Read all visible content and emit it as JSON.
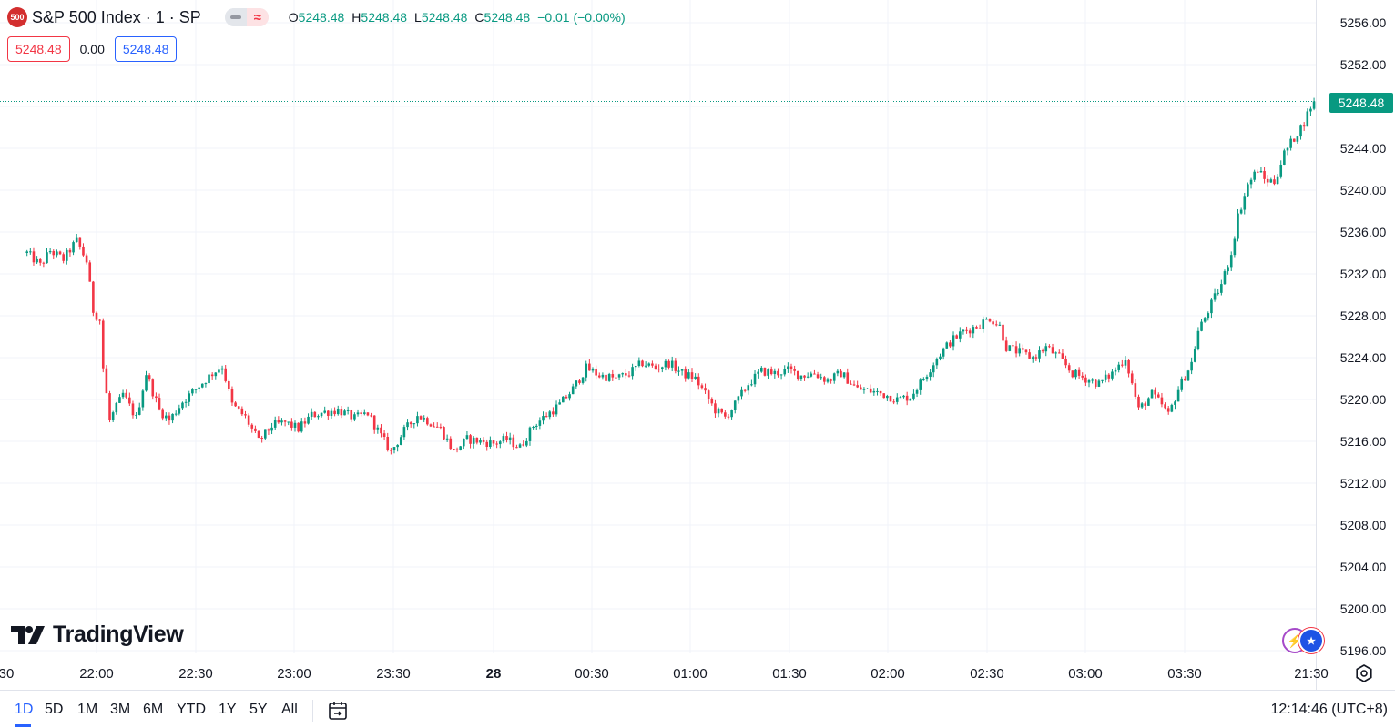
{
  "legend": {
    "badge": "500",
    "symbol_title": "S&P 500 Index · 1 · SP",
    "compare_icon": "≈",
    "ohlc": [
      {
        "k": "O",
        "v": "5248.48"
      },
      {
        "k": "H",
        "v": "5248.48"
      },
      {
        "k": "L",
        "v": "5248.48"
      },
      {
        "k": "C",
        "v": "5248.48"
      },
      {
        "k": "",
        "v": "−0.01 (−0.00%)"
      }
    ]
  },
  "order_boxes": {
    "sell": "5248.48",
    "spread": "0.00",
    "buy": "5248.48"
  },
  "brand": {
    "name": "TradingView"
  },
  "price_scale": {
    "labels": [
      "5256.00",
      "5252.00",
      "5248.00",
      "5244.00",
      "5240.00",
      "5236.00",
      "5232.00",
      "5228.00",
      "5224.00",
      "5220.00",
      "5216.00",
      "5212.00",
      "5208.00",
      "5204.00",
      "5200.00",
      "5196.00"
    ],
    "last_price": "5248.48"
  },
  "time_axis": {
    "labels": [
      "30",
      "22:00",
      "22:30",
      "23:00",
      "23:30",
      "28",
      "00:30",
      "01:00",
      "01:30",
      "02:00",
      "02:30",
      "03:00",
      "03:30",
      "21:30"
    ]
  },
  "toolbar": {
    "ranges": [
      "1D",
      "5D",
      "1M",
      "3M",
      "6M",
      "YTD",
      "1Y",
      "5Y",
      "All"
    ],
    "active_range": "1D",
    "clock": "12:14:46 (UTC+8)"
  },
  "colors": {
    "up": "#089981",
    "down": "#f23645",
    "accent": "#2962ff",
    "grid": "#f0f3fa"
  },
  "chart_data": {
    "type": "candlestick",
    "title": "S&P 500 Index · 1 · SP",
    "interval": "1 minute",
    "xlabel": "",
    "ylabel": "",
    "ylim": [
      5195.5,
      5257.5
    ],
    "y_ticks": [
      5256,
      5252,
      5248,
      5244,
      5240,
      5236,
      5232,
      5228,
      5224,
      5220,
      5216,
      5212,
      5208,
      5204,
      5200,
      5196
    ],
    "x_ticks": [
      "30",
      "22:00",
      "22:30",
      "23:00",
      "23:30",
      "28",
      "00:30",
      "01:00",
      "01:30",
      "02:00",
      "02:30",
      "03:00",
      "03:30",
      "21:30"
    ],
    "last_price": 5248.48,
    "grid": true,
    "price_path": [
      {
        "time": "21:39",
        "price": 5234.0
      },
      {
        "time": "21:43",
        "price": 5232.8
      },
      {
        "time": "21:46",
        "price": 5234.2
      },
      {
        "time": "21:50",
        "price": 5233.4
      },
      {
        "time": "21:54",
        "price": 5235.2
      },
      {
        "time": "21:57",
        "price": 5233.2
      },
      {
        "time": "21:59",
        "price": 5228.5
      },
      {
        "time": "22:01",
        "price": 5227.6
      },
      {
        "time": "22:02",
        "price": 5223.0
      },
      {
        "time": "22:04",
        "price": 5218.0
      },
      {
        "time": "22:08",
        "price": 5220.5
      },
      {
        "time": "22:12",
        "price": 5218.2
      },
      {
        "time": "22:15",
        "price": 5222.5
      },
      {
        "time": "22:19",
        "price": 5219.0
      },
      {
        "time": "22:22",
        "price": 5218.0
      },
      {
        "time": "22:26",
        "price": 5219.8
      },
      {
        "time": "22:30",
        "price": 5221.0
      },
      {
        "time": "22:35",
        "price": 5222.5
      },
      {
        "time": "22:38",
        "price": 5223.2
      },
      {
        "time": "22:41",
        "price": 5219.5
      },
      {
        "time": "22:45",
        "price": 5218.3
      },
      {
        "time": "22:49",
        "price": 5216.0
      },
      {
        "time": "22:53",
        "price": 5217.5
      },
      {
        "time": "22:57",
        "price": 5217.8
      },
      {
        "time": "23:01",
        "price": 5217.2
      },
      {
        "time": "23:05",
        "price": 5218.5
      },
      {
        "time": "23:09",
        "price": 5218.8
      },
      {
        "time": "23:13",
        "price": 5219.0
      },
      {
        "time": "23:18",
        "price": 5218.2
      },
      {
        "time": "23:22",
        "price": 5218.7
      },
      {
        "time": "23:26",
        "price": 5216.5
      },
      {
        "time": "23:29",
        "price": 5215.0
      },
      {
        "time": "23:33",
        "price": 5217.0
      },
      {
        "time": "23:37",
        "price": 5218.5
      },
      {
        "time": "23:40",
        "price": 5218.0
      },
      {
        "time": "23:44",
        "price": 5217.2
      },
      {
        "time": "23:48",
        "price": 5215.0
      },
      {
        "time": "23:52",
        "price": 5216.2
      },
      {
        "time": "23:56",
        "price": 5216.0
      },
      {
        "time": "00:00",
        "price": 5215.8
      },
      {
        "time": "00:04",
        "price": 5216.2
      },
      {
        "time": "00:08",
        "price": 5215.4
      },
      {
        "time": "00:12",
        "price": 5217.5
      },
      {
        "time": "00:16",
        "price": 5218.5
      },
      {
        "time": "00:20",
        "price": 5219.5
      },
      {
        "time": "00:24",
        "price": 5221.0
      },
      {
        "time": "00:28",
        "price": 5223.0
      },
      {
        "time": "00:32",
        "price": 5222.3
      },
      {
        "time": "00:37",
        "price": 5222.0
      },
      {
        "time": "00:41",
        "price": 5222.5
      },
      {
        "time": "00:45",
        "price": 5223.5
      },
      {
        "time": "00:49",
        "price": 5223.0
      },
      {
        "time": "00:53",
        "price": 5223.5
      },
      {
        "time": "00:57",
        "price": 5222.5
      },
      {
        "time": "01:01",
        "price": 5222.0
      },
      {
        "time": "01:04",
        "price": 5220.5
      },
      {
        "time": "01:07",
        "price": 5219.0
      },
      {
        "time": "01:10",
        "price": 5218.3
      },
      {
        "time": "01:13",
        "price": 5219.5
      },
      {
        "time": "01:17",
        "price": 5221.5
      },
      {
        "time": "01:21",
        "price": 5222.7
      },
      {
        "time": "01:25",
        "price": 5222.5
      },
      {
        "time": "01:29",
        "price": 5222.8
      },
      {
        "time": "01:33",
        "price": 5222.3
      },
      {
        "time": "01:37",
        "price": 5222.5
      },
      {
        "time": "01:41",
        "price": 5221.8
      },
      {
        "time": "01:45",
        "price": 5222.5
      },
      {
        "time": "01:50",
        "price": 5221.0
      },
      {
        "time": "01:54",
        "price": 5220.8
      },
      {
        "time": "01:58",
        "price": 5220.5
      },
      {
        "time": "02:02",
        "price": 5220.0
      },
      {
        "time": "02:06",
        "price": 5220.3
      },
      {
        "time": "02:10",
        "price": 5222.0
      },
      {
        "time": "02:14",
        "price": 5224.0
      },
      {
        "time": "02:18",
        "price": 5225.5
      },
      {
        "time": "02:22",
        "price": 5226.5
      },
      {
        "time": "02:26",
        "price": 5227.0
      },
      {
        "time": "02:30",
        "price": 5227.8
      },
      {
        "time": "02:33",
        "price": 5227.0
      },
      {
        "time": "02:35",
        "price": 5225.0
      },
      {
        "time": "02:39",
        "price": 5224.5
      },
      {
        "time": "02:43",
        "price": 5224.0
      },
      {
        "time": "02:47",
        "price": 5225.0
      },
      {
        "time": "02:51",
        "price": 5224.0
      },
      {
        "time": "02:55",
        "price": 5222.5
      },
      {
        "time": "02:59",
        "price": 5222.0
      },
      {
        "time": "03:03",
        "price": 5221.5
      },
      {
        "time": "03:07",
        "price": 5222.5
      },
      {
        "time": "03:11",
        "price": 5224.0
      },
      {
        "time": "03:13",
        "price": 5221.5
      },
      {
        "time": "03:15",
        "price": 5219.0
      },
      {
        "time": "03:19",
        "price": 5220.5
      },
      {
        "time": "03:22",
        "price": 5219.5
      },
      {
        "time": "03:24",
        "price": 5218.5
      },
      {
        "time": "03:27",
        "price": 5221.0
      },
      {
        "time": "03:31",
        "price": 5223.5
      },
      {
        "time": "03:33",
        "price": 5226.5
      },
      {
        "time": "03:36",
        "price": 5228.5
      },
      {
        "time": "03:40",
        "price": 5231.0
      },
      {
        "time": "03:43",
        "price": 5234.0
      },
      {
        "time": "03:45",
        "price": 5237.5
      },
      {
        "time": "03:48",
        "price": 5240.5
      },
      {
        "time": "03:51",
        "price": 5242.0
      },
      {
        "time": "03:53",
        "price": 5241.0
      },
      {
        "time": "03:56",
        "price": 5240.8
      },
      {
        "time": "03:59",
        "price": 5243.5
      },
      {
        "time": "04:02",
        "price": 5245.0
      },
      {
        "time": "04:05",
        "price": 5246.5
      },
      {
        "time": "04:07",
        "price": 5248.0
      },
      {
        "time": "04:08",
        "price": 5248.48
      }
    ]
  }
}
